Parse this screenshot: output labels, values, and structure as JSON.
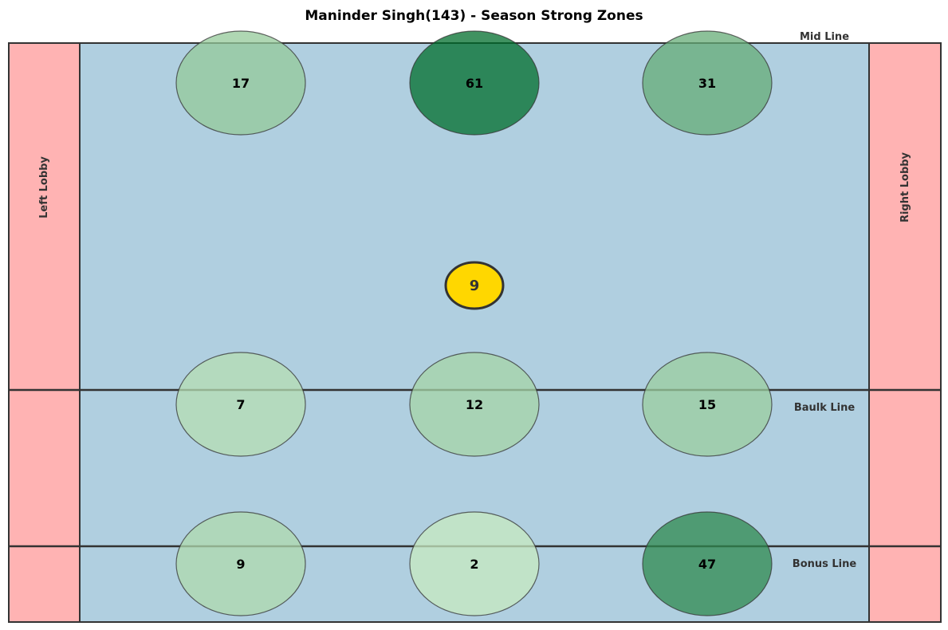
{
  "chart_data": {
    "type": "heatmap",
    "title": "Maninder Singh(143) - Season Strong Zones",
    "court": {
      "left_lobby_label": "Left Lobby",
      "right_lobby_label": "Right Lobby",
      "mid_line_label": "Mid Line",
      "baulk_line_label": "Baulk Line",
      "bonus_line_label": "Bonus Line",
      "court_color": "#b0cfe0",
      "lobby_color": "#ffb3b3",
      "line_color": "#333333"
    },
    "zones": [
      {
        "row": "top",
        "column": "left",
        "value": 17
      },
      {
        "row": "top",
        "column": "center",
        "value": 61
      },
      {
        "row": "top",
        "column": "right",
        "value": 31
      },
      {
        "row": "baulk",
        "column": "left",
        "value": 7
      },
      {
        "row": "baulk",
        "column": "center",
        "value": 12
      },
      {
        "row": "baulk",
        "column": "right",
        "value": 15
      },
      {
        "row": "bonus",
        "column": "left",
        "value": 9
      },
      {
        "row": "bonus",
        "column": "center",
        "value": 2
      },
      {
        "row": "bonus",
        "column": "right",
        "value": 47
      }
    ],
    "player_marker": {
      "label": "9",
      "color": "#ffd700"
    },
    "color_scale": {
      "min_color": "#c7e9c0",
      "max_color": "#006d2c"
    }
  }
}
